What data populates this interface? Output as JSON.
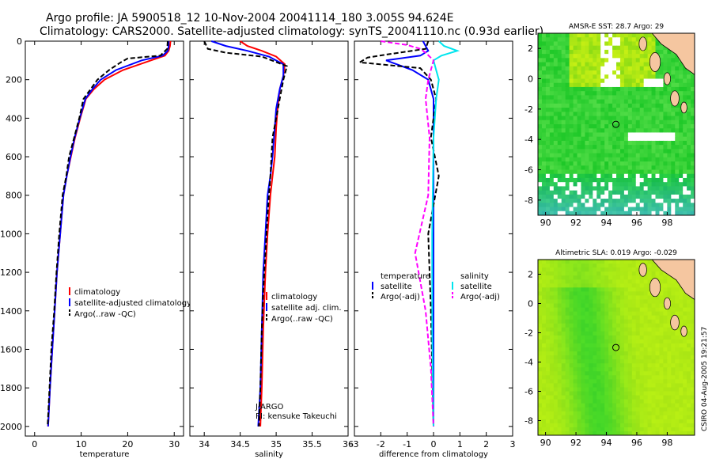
{
  "title": {
    "line1": "Argo profile: JA 5900518_12 10-Nov-2004 20041114_180 3.005S 94.624E",
    "line2": "Climatology: CARS2000. Satellite-adjusted climatology: synTS_20041110.nc (0.93d earlier)"
  },
  "colors": {
    "climatology": "#ff0000",
    "satellite": "#0000ff",
    "argo": "#000000",
    "salinity_satellite": "#00e5ee",
    "salinity_argo": "#ff00ff"
  },
  "chart_data": [
    {
      "type": "line",
      "id": "temperature",
      "xlabel": "temperature",
      "xlim": [
        -2,
        32
      ],
      "ylim": [
        2050,
        0
      ],
      "xticks": [
        0,
        10,
        20,
        30
      ],
      "yticks": [
        0,
        200,
        400,
        600,
        800,
        1000,
        1200,
        1400,
        1600,
        1800,
        2000
      ],
      "legend": [
        "climatology",
        "satellite-adjusted climatology",
        "Argo(..raw -QC)"
      ],
      "series": [
        {
          "name": "climatology",
          "color": "#ff0000",
          "dash": false,
          "x": [
            29.2,
            29.1,
            28.8,
            28.0,
            25.0,
            19.0,
            15.0,
            12.7,
            11.0,
            9.8,
            8.7,
            7.8,
            6.9,
            6.2,
            5.5,
            4.8,
            4.3,
            3.8,
            3.3,
            2.9
          ],
          "y": [
            0,
            25,
            50,
            75,
            100,
            150,
            200,
            250,
            300,
            400,
            500,
            600,
            700,
            800,
            1000,
            1200,
            1400,
            1600,
            1800,
            2000
          ]
        },
        {
          "name": "satellite-adjusted climatology",
          "color": "#0000ff",
          "dash": false,
          "x": [
            28.8,
            28.8,
            28.6,
            27.5,
            23.0,
            17.5,
            14.2,
            12.4,
            10.9,
            9.7,
            8.6,
            7.7,
            6.9,
            6.2,
            5.5,
            4.8,
            4.3,
            3.8,
            3.3,
            2.9
          ],
          "y": [
            0,
            25,
            50,
            75,
            100,
            150,
            200,
            250,
            300,
            400,
            500,
            600,
            700,
            800,
            1000,
            1200,
            1400,
            1600,
            1800,
            2000
          ]
        },
        {
          "name": "Argo(..raw -QC)",
          "color": "#000000",
          "dash": true,
          "x": [
            28.6,
            28.5,
            27.0,
            20.0,
            18.5,
            16.0,
            13.5,
            12.0,
            10.5,
            9.6,
            8.5,
            7.4,
            6.8,
            6.0,
            5.3,
            4.7,
            4.2,
            3.6,
            3.2,
            2.8
          ],
          "y": [
            0,
            40,
            75,
            90,
            110,
            150,
            200,
            250,
            300,
            400,
            500,
            600,
            700,
            800,
            1000,
            1200,
            1400,
            1600,
            1800,
            2000
          ]
        }
      ]
    },
    {
      "type": "line",
      "id": "salinity",
      "xlabel": "salinity",
      "xlim": [
        33.8,
        36.0
      ],
      "ylim": [
        2050,
        0
      ],
      "xticks": [
        34,
        34.5,
        35,
        35.5,
        36
      ],
      "legend": [
        "climatology",
        "satellite adj. clim.",
        "Argo(..raw -QC)"
      ],
      "annotations": [
        "J-ARGO",
        "PI: kensuke Takeuchi"
      ],
      "series": [
        {
          "name": "climatology",
          "color": "#ff0000",
          "dash": false,
          "x": [
            34.5,
            34.6,
            34.8,
            35.0,
            35.12,
            35.1,
            35.05,
            35.02,
            35.0,
            34.98,
            34.95,
            34.92,
            34.88,
            34.85,
            34.82,
            34.8,
            34.78
          ],
          "y": [
            0,
            25,
            50,
            80,
            120,
            180,
            250,
            350,
            450,
            600,
            700,
            800,
            1000,
            1200,
            1500,
            1800,
            2000
          ]
        },
        {
          "name": "satellite adj. clim.",
          "color": "#0000ff",
          "dash": false,
          "x": [
            34.1,
            34.3,
            34.6,
            34.9,
            35.1,
            35.1,
            35.05,
            35.0,
            34.98,
            34.95,
            34.92,
            34.88,
            34.85,
            34.82,
            34.8,
            34.78,
            34.75
          ],
          "y": [
            0,
            25,
            50,
            80,
            120,
            180,
            250,
            350,
            450,
            600,
            700,
            800,
            1000,
            1200,
            1500,
            1800,
            2000
          ]
        },
        {
          "name": "Argo(..raw -QC)",
          "color": "#000000",
          "dash": true,
          "x": [
            34.0,
            34.05,
            34.3,
            34.8,
            35.15,
            35.1,
            35.05,
            35.0,
            34.95,
            34.92,
            34.88,
            34.85,
            34.82,
            34.8,
            34.78,
            34.76
          ],
          "y": [
            0,
            40,
            60,
            80,
            130,
            200,
            300,
            400,
            500,
            700,
            900,
            1100,
            1300,
            1500,
            1800,
            2000
          ]
        }
      ]
    },
    {
      "type": "line",
      "id": "difference",
      "xlabel": "difference from climatology",
      "xlim": [
        -3,
        3
      ],
      "ylim": [
        2050,
        0
      ],
      "xticks": [
        -3,
        -2,
        -1,
        0,
        1,
        2,
        3
      ],
      "legend_left": {
        "title": "temperature",
        "items": [
          "satellite",
          "Argo(-adj)"
        ]
      },
      "legend_right": {
        "title": "salinity",
        "items": [
          "satellite",
          "Argo(-adj)"
        ]
      },
      "series": [
        {
          "name": "temperature satellite",
          "color": "#0000ff",
          "dash": false,
          "x": [
            -0.4,
            -0.3,
            -0.2,
            -0.5,
            -1.8,
            -0.8,
            -0.2,
            0.0,
            0.0,
            0.0,
            0.0,
            0.0,
            0.0
          ],
          "y": [
            0,
            25,
            50,
            75,
            100,
            150,
            200,
            300,
            500,
            800,
            1200,
            1600,
            2000
          ]
        },
        {
          "name": "temperature Argo(-adj)",
          "color": "#000000",
          "dash": true,
          "x": [
            -0.2,
            -0.3,
            -1.8,
            -2.5,
            -2.8,
            -0.5,
            -0.1,
            0.1,
            -0.1,
            0.2,
            -0.2,
            -0.1,
            0.0
          ],
          "y": [
            0,
            40,
            70,
            85,
            110,
            140,
            200,
            300,
            500,
            700,
            1000,
            1400,
            2000
          ]
        },
        {
          "name": "salinity satellite",
          "color": "#00e5ee",
          "dash": false,
          "x": [
            0.2,
            0.4,
            0.9,
            0.3,
            0.0,
            0.1,
            0.2,
            0.1,
            0.0,
            -0.05,
            -0.05,
            0.0
          ],
          "y": [
            0,
            25,
            50,
            75,
            100,
            150,
            200,
            300,
            500,
            1000,
            1500,
            2000
          ]
        },
        {
          "name": "salinity Argo(-adj)",
          "color": "#ff00ff",
          "dash": true,
          "x": [
            -2.0,
            -1.0,
            -0.5,
            -0.3,
            0.0,
            -0.2,
            -0.3,
            -0.15,
            -0.2,
            -0.7,
            -0.3,
            -0.1,
            0.0
          ],
          "y": [
            0,
            20,
            40,
            60,
            100,
            200,
            300,
            500,
            800,
            1100,
            1400,
            1700,
            2000
          ]
        }
      ]
    },
    {
      "type": "heatmap",
      "id": "sst-map",
      "title": "AMSR-E SST: 28.7 Argo: 29",
      "xlim": [
        89.5,
        99.8
      ],
      "ylim": [
        -9,
        3
      ],
      "xticks": [
        90,
        92,
        94,
        96,
        98
      ],
      "yticks": [
        -8,
        -6,
        -4,
        -2,
        0,
        2
      ],
      "marker": {
        "lon": 94.624,
        "lat": -3.005
      }
    },
    {
      "type": "heatmap",
      "id": "sla-map",
      "title": "Altimetric SLA: 0.019 Argo: -0.029",
      "xlim": [
        89.5,
        99.8
      ],
      "ylim": [
        -9,
        3
      ],
      "xticks": [
        90,
        92,
        94,
        96,
        98
      ],
      "yticks": [
        -8,
        -6,
        -4,
        -2,
        0,
        2
      ],
      "marker": {
        "lon": 94.624,
        "lat": -3.005
      }
    }
  ],
  "credit": "CSIRO 04-Aug-2005 19:21:57"
}
